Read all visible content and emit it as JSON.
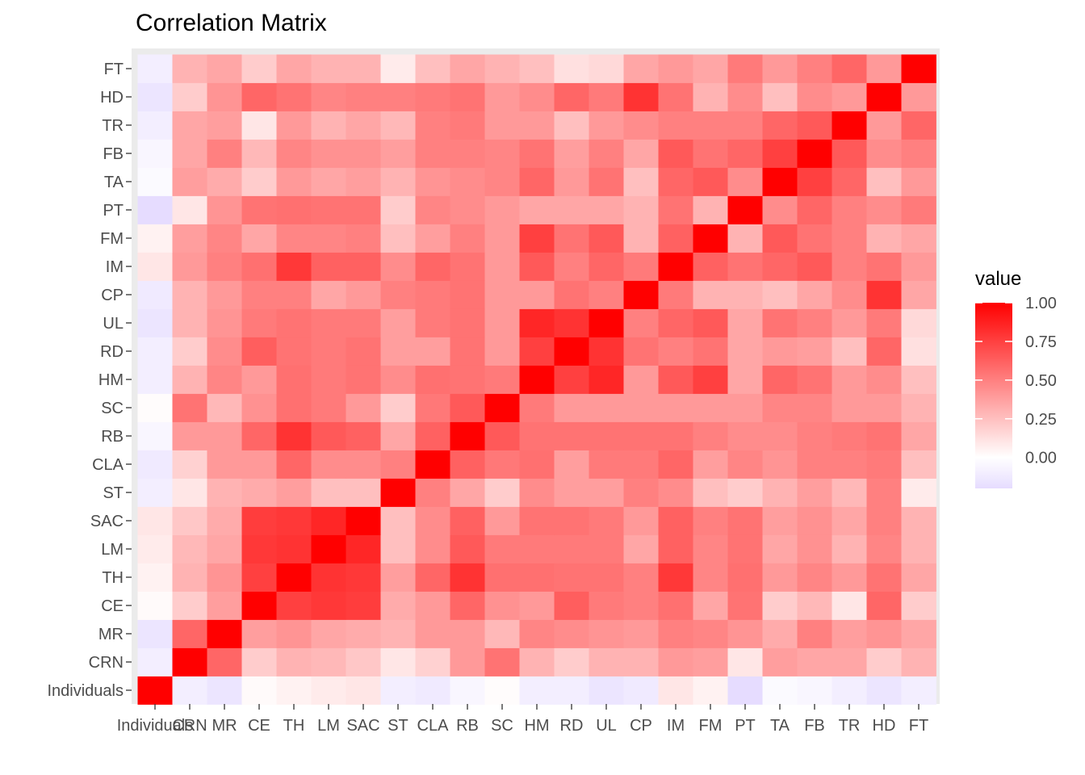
{
  "chart_data": {
    "type": "heatmap",
    "title": "Correlation Matrix",
    "xlabel": "",
    "ylabel": "",
    "variables": [
      "Individuals",
      "CRN",
      "MR",
      "CE",
      "TH",
      "LM",
      "SAC",
      "ST",
      "CLA",
      "RB",
      "SC",
      "HM",
      "RD",
      "UL",
      "CP",
      "IM",
      "FM",
      "PT",
      "TA",
      "FB",
      "TR",
      "HD",
      "FT"
    ],
    "values": [
      [
        1.0,
        -0.1,
        -0.15,
        0.02,
        0.05,
        0.08,
        0.1,
        -0.1,
        -0.12,
        -0.05,
        0.01,
        -0.1,
        -0.1,
        -0.15,
        -0.12,
        0.1,
        0.05,
        -0.2,
        -0.03,
        -0.05,
        -0.1,
        -0.15,
        -0.1
      ],
      [
        -0.1,
        1.0,
        0.6,
        0.2,
        0.3,
        0.28,
        0.22,
        0.1,
        0.18,
        0.4,
        0.55,
        0.3,
        0.2,
        0.3,
        0.3,
        0.4,
        0.38,
        0.1,
        0.38,
        0.35,
        0.35,
        0.2,
        0.3
      ],
      [
        -0.15,
        0.6,
        1.0,
        0.38,
        0.42,
        0.35,
        0.33,
        0.3,
        0.4,
        0.4,
        0.28,
        0.48,
        0.45,
        0.42,
        0.4,
        0.5,
        0.48,
        0.42,
        0.33,
        0.5,
        0.38,
        0.42,
        0.35
      ],
      [
        0.02,
        0.2,
        0.38,
        1.0,
        0.75,
        0.78,
        0.76,
        0.33,
        0.4,
        0.6,
        0.43,
        0.4,
        0.63,
        0.52,
        0.5,
        0.56,
        0.35,
        0.55,
        0.2,
        0.28,
        0.1,
        0.6,
        0.2
      ],
      [
        0.05,
        0.3,
        0.42,
        0.75,
        1.0,
        0.8,
        0.78,
        0.38,
        0.6,
        0.8,
        0.56,
        0.56,
        0.55,
        0.55,
        0.5,
        0.78,
        0.48,
        0.56,
        0.4,
        0.48,
        0.4,
        0.55,
        0.35
      ],
      [
        0.08,
        0.28,
        0.35,
        0.78,
        0.8,
        1.0,
        0.85,
        0.25,
        0.45,
        0.65,
        0.52,
        0.52,
        0.52,
        0.52,
        0.35,
        0.62,
        0.48,
        0.55,
        0.35,
        0.43,
        0.3,
        0.48,
        0.3
      ],
      [
        0.1,
        0.22,
        0.33,
        0.76,
        0.78,
        0.85,
        1.0,
        0.25,
        0.45,
        0.62,
        0.4,
        0.55,
        0.55,
        0.52,
        0.4,
        0.62,
        0.5,
        0.55,
        0.38,
        0.43,
        0.35,
        0.5,
        0.3
      ],
      [
        -0.1,
        0.1,
        0.3,
        0.33,
        0.38,
        0.25,
        0.25,
        1.0,
        0.5,
        0.35,
        0.2,
        0.45,
        0.38,
        0.38,
        0.5,
        0.45,
        0.25,
        0.2,
        0.3,
        0.38,
        0.28,
        0.5,
        0.08
      ],
      [
        -0.12,
        0.18,
        0.4,
        0.4,
        0.6,
        0.45,
        0.45,
        0.5,
        1.0,
        0.62,
        0.53,
        0.56,
        0.38,
        0.52,
        0.52,
        0.6,
        0.38,
        0.48,
        0.42,
        0.5,
        0.5,
        0.52,
        0.25
      ],
      [
        -0.05,
        0.4,
        0.4,
        0.6,
        0.8,
        0.65,
        0.62,
        0.35,
        0.62,
        1.0,
        0.65,
        0.55,
        0.55,
        0.55,
        0.55,
        0.55,
        0.5,
        0.45,
        0.45,
        0.5,
        0.52,
        0.55,
        0.35
      ],
      [
        0.01,
        0.55,
        0.28,
        0.43,
        0.56,
        0.52,
        0.4,
        0.2,
        0.53,
        0.65,
        1.0,
        0.52,
        0.4,
        0.4,
        0.4,
        0.4,
        0.4,
        0.4,
        0.48,
        0.48,
        0.4,
        0.4,
        0.3
      ],
      [
        -0.1,
        0.3,
        0.48,
        0.4,
        0.56,
        0.52,
        0.55,
        0.45,
        0.56,
        0.55,
        0.52,
        1.0,
        0.75,
        0.85,
        0.4,
        0.65,
        0.75,
        0.35,
        0.6,
        0.55,
        0.4,
        0.45,
        0.25
      ],
      [
        -0.1,
        0.2,
        0.45,
        0.63,
        0.55,
        0.52,
        0.55,
        0.38,
        0.38,
        0.55,
        0.4,
        0.75,
        1.0,
        0.8,
        0.55,
        0.5,
        0.55,
        0.35,
        0.4,
        0.38,
        0.25,
        0.6,
        0.12
      ],
      [
        -0.15,
        0.3,
        0.42,
        0.52,
        0.55,
        0.52,
        0.52,
        0.38,
        0.52,
        0.55,
        0.4,
        0.85,
        0.8,
        1.0,
        0.5,
        0.6,
        0.65,
        0.35,
        0.55,
        0.5,
        0.4,
        0.52,
        0.15
      ],
      [
        -0.12,
        0.3,
        0.4,
        0.5,
        0.5,
        0.35,
        0.4,
        0.5,
        0.52,
        0.55,
        0.4,
        0.4,
        0.55,
        0.5,
        1.0,
        0.52,
        0.3,
        0.3,
        0.25,
        0.35,
        0.45,
        0.8,
        0.35
      ],
      [
        0.1,
        0.4,
        0.5,
        0.56,
        0.78,
        0.62,
        0.62,
        0.45,
        0.6,
        0.55,
        0.4,
        0.65,
        0.5,
        0.6,
        0.52,
        1.0,
        0.62,
        0.55,
        0.6,
        0.65,
        0.5,
        0.55,
        0.4
      ],
      [
        0.05,
        0.38,
        0.48,
        0.35,
        0.48,
        0.48,
        0.5,
        0.25,
        0.38,
        0.5,
        0.4,
        0.75,
        0.55,
        0.65,
        0.3,
        0.62,
        1.0,
        0.3,
        0.65,
        0.55,
        0.5,
        0.3,
        0.35
      ],
      [
        -0.2,
        0.1,
        0.42,
        0.55,
        0.56,
        0.55,
        0.55,
        0.2,
        0.48,
        0.45,
        0.4,
        0.35,
        0.35,
        0.35,
        0.3,
        0.55,
        0.3,
        1.0,
        0.45,
        0.6,
        0.5,
        0.45,
        0.52
      ],
      [
        -0.03,
        0.38,
        0.33,
        0.2,
        0.4,
        0.35,
        0.38,
        0.3,
        0.42,
        0.45,
        0.48,
        0.6,
        0.4,
        0.55,
        0.25,
        0.6,
        0.65,
        0.45,
        1.0,
        0.75,
        0.6,
        0.25,
        0.4
      ],
      [
        -0.05,
        0.35,
        0.5,
        0.28,
        0.48,
        0.43,
        0.43,
        0.38,
        0.5,
        0.5,
        0.48,
        0.55,
        0.38,
        0.5,
        0.35,
        0.65,
        0.55,
        0.6,
        0.75,
        1.0,
        0.65,
        0.45,
        0.5
      ],
      [
        -0.1,
        0.35,
        0.38,
        0.1,
        0.4,
        0.3,
        0.35,
        0.28,
        0.5,
        0.52,
        0.4,
        0.4,
        0.25,
        0.4,
        0.45,
        0.5,
        0.5,
        0.5,
        0.6,
        0.65,
        1.0,
        0.4,
        0.6
      ],
      [
        -0.15,
        0.2,
        0.42,
        0.6,
        0.55,
        0.48,
        0.5,
        0.5,
        0.52,
        0.55,
        0.4,
        0.45,
        0.6,
        0.52,
        0.8,
        0.55,
        0.3,
        0.45,
        0.25,
        0.45,
        0.4,
        1.0,
        0.4
      ],
      [
        -0.1,
        0.3,
        0.35,
        0.2,
        0.35,
        0.3,
        0.3,
        0.08,
        0.25,
        0.35,
        0.3,
        0.25,
        0.12,
        0.15,
        0.35,
        0.4,
        0.35,
        0.52,
        0.4,
        0.5,
        0.6,
        0.4,
        1.0
      ]
    ],
    "legend": {
      "title": "value",
      "ticks": [
        1.0,
        0.75,
        0.5,
        0.25,
        0.0
      ],
      "tick_labels": [
        "1.00",
        "0.75",
        "0.50",
        "0.25",
        "0.00"
      ],
      "range": [
        -0.2,
        1.0
      ],
      "placement": "right"
    },
    "colors": {
      "low": "#e6dcff",
      "mid": "#ffffff",
      "high": "#ff0000",
      "panel_bg": "#ebebeb"
    },
    "grid": true
  }
}
